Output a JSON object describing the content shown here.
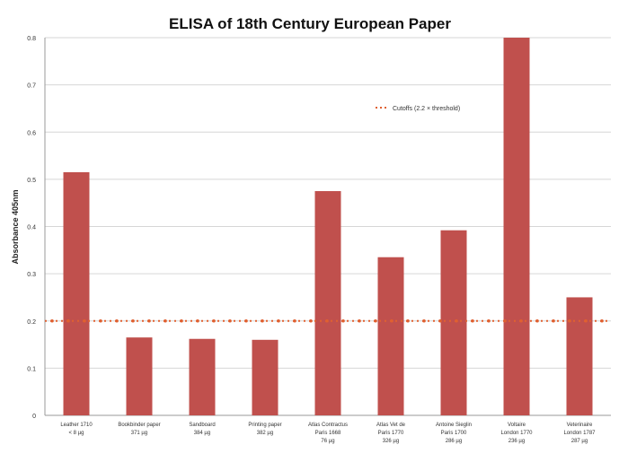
{
  "chart_data": {
    "type": "bar",
    "title": "ELISA of 18th Century European Paper",
    "ylabel": "Absorbance 405nm",
    "xlabel": "",
    "ylim": [
      0,
      0.8
    ],
    "yticks": [
      "0",
      "0.1",
      "0.2",
      "0.3",
      "0.4",
      "0.5",
      "0.6",
      "0.7",
      "0.8"
    ],
    "grid": true,
    "categories": [
      [
        "Leather 1710",
        "< 8 µg"
      ],
      [
        "Bookbinder paper",
        "371 µg"
      ],
      [
        "Sandboard",
        "384 µg"
      ],
      [
        "Printing paper",
        "382 µg"
      ],
      [
        "Atlas Contractus",
        "Paris 1668",
        "76 µg"
      ],
      [
        "Atlas Vet de",
        "Paris 1770",
        "326 µg"
      ],
      [
        "Antoine Sieglin",
        "Paris 1700",
        "286 µg"
      ],
      [
        "Voltaire",
        "London 1770",
        "236 µg"
      ],
      [
        "Veterinaire",
        "London 1787",
        "287 µg"
      ]
    ],
    "series": [
      {
        "values": [
          0.515,
          0.165,
          0.162,
          0.16,
          0.475,
          0.335,
          0.392,
          0.8,
          0.25
        ],
        "color": "#c0504d"
      }
    ],
    "threshold": {
      "label": "Cutoffs (2.2 × threshold)",
      "value": 0.2,
      "color": "#e06030"
    },
    "legend_position": "top-right"
  }
}
